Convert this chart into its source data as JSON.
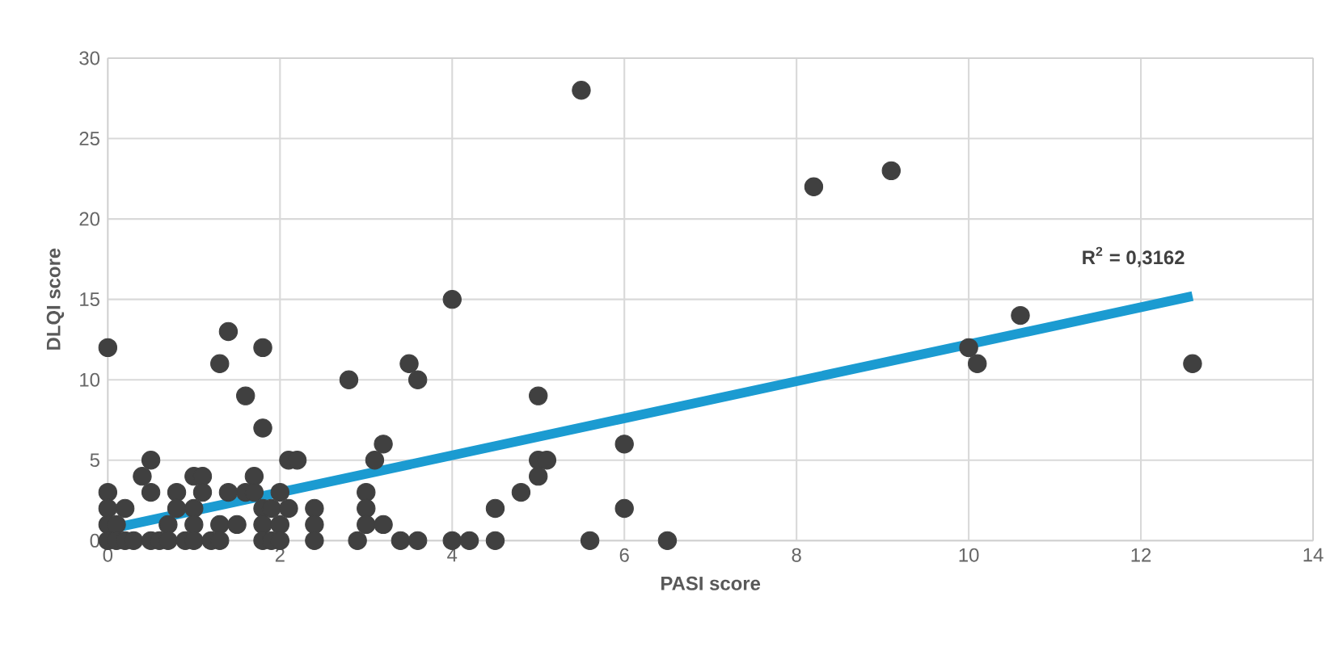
{
  "chart_data": {
    "type": "scatter",
    "xlabel": "PASI score",
    "ylabel": "DLQI score",
    "xlim": [
      0,
      14
    ],
    "xticks": [
      0,
      2,
      4,
      6,
      8,
      10,
      12,
      14
    ],
    "ylim": [
      0,
      30
    ],
    "yticks": [
      0,
      5,
      10,
      15,
      20,
      25,
      30
    ],
    "grid": true,
    "annotations": [
      {
        "text": "R$^{2}$ = 0,3162",
        "x": 12.6,
        "y": 15.2
      }
    ],
    "series": [
      {
        "color": "#404040",
        "marker": "circle",
        "x": [
          0,
          0,
          0,
          0,
          0,
          0.1,
          0.1,
          0.2,
          0.2,
          0.3,
          0.4,
          0.5,
          0.5,
          0.5,
          0.6,
          0.7,
          0.7,
          0.8,
          0.8,
          0.9,
          1.0,
          1.0,
          1.0,
          1.1,
          1.1,
          1.0,
          1.2,
          1.3,
          1.3,
          1.3,
          1.4,
          1.4,
          1.5,
          1.6,
          1.6,
          1.7,
          1.8,
          1.8,
          1.7,
          1.8,
          1.8,
          1.8,
          1.9,
          1.9,
          2.0,
          2.0,
          2.1,
          2.2,
          2.1,
          2.0,
          2.4,
          2.4,
          2.4,
          2.8,
          2.9,
          3.0,
          3.0,
          3.0,
          3.1,
          3.2,
          3.2,
          3.4,
          3.5,
          3.6,
          3.6,
          4.0,
          4.0,
          4.2,
          4.5,
          4.5,
          4.8,
          5.0,
          5.0,
          5.0,
          5.1,
          5.5,
          5.6,
          6.0,
          6.0,
          6.5,
          8.2,
          9.1,
          10.0,
          10.1,
          10.6,
          12.6
        ],
        "values": [
          12,
          3,
          2,
          1,
          0,
          1,
          0,
          2,
          0,
          0,
          4,
          5,
          3,
          0,
          0,
          1,
          0,
          3,
          2,
          0,
          4,
          2,
          1,
          4,
          3,
          0,
          0,
          11,
          1,
          0,
          13,
          3,
          1,
          9,
          3,
          4,
          12,
          7,
          3,
          2,
          1,
          0,
          2,
          0,
          1,
          0,
          5,
          5,
          2,
          3,
          2,
          1,
          0,
          10,
          0,
          3,
          2,
          1,
          5,
          6,
          1,
          0,
          11,
          10,
          0,
          15,
          0,
          0,
          2,
          0,
          3,
          9,
          5,
          4,
          5,
          28,
          0,
          6,
          2,
          0,
          22,
          23,
          12,
          11,
          14,
          11
        ]
      },
      {
        "type": "line",
        "color": "#1b9bd1",
        "x": [
          0,
          12.6
        ],
        "values": [
          0.7,
          15.2
        ],
        "marker": "none"
      }
    ]
  }
}
